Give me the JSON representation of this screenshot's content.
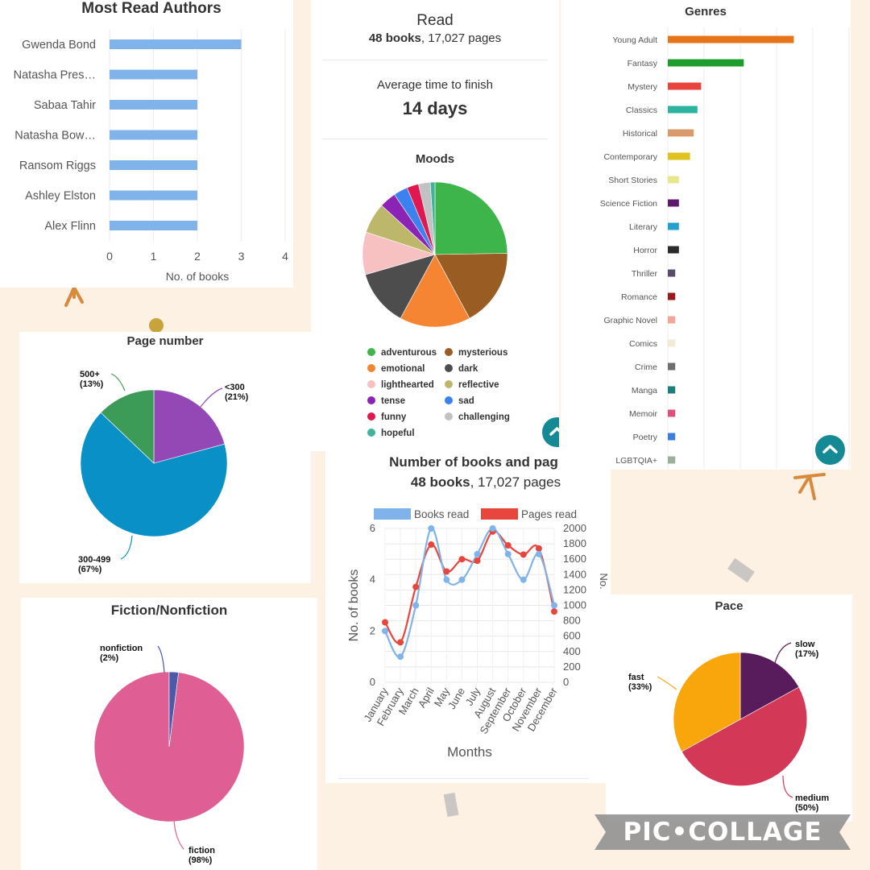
{
  "authors": {
    "title": "Most Read Authors",
    "chart_data": {
      "type": "bar",
      "orientation": "horizontal",
      "title": "Most Read Authors",
      "categories": [
        "Gwenda Bond",
        "Natasha Pres…",
        "Sabaa Tahir",
        "Natasha Bow…",
        "Ransom Riggs",
        "Ashley Elston",
        "Alex Flinn"
      ],
      "values": [
        3,
        2,
        2,
        2,
        2,
        2,
        2
      ],
      "xlabel": "No. of books",
      "xlim": [
        0,
        4
      ],
      "xticks": [
        0,
        1,
        2,
        3,
        4
      ],
      "color": "#7fb3ea"
    }
  },
  "read": {
    "title": "Read",
    "books": "48 books",
    "pages": ", 17,027 pages",
    "avg_label": "Average time to finish",
    "avg_value": "14 days"
  },
  "moods": {
    "title": "Moods",
    "chart_data": {
      "type": "pie",
      "title": "Moods",
      "labels": [
        "adventurous",
        "mysterious",
        "emotional",
        "dark",
        "lighthearted",
        "reflective",
        "tense",
        "sad",
        "funny",
        "challenging",
        "hopeful"
      ],
      "values": [
        23.5,
        16.5,
        15.0,
        12.0,
        9.0,
        6.5,
        3.5,
        3.0,
        2.5,
        2.5,
        1.0
      ],
      "colors": [
        "#3db54a",
        "#995d24",
        "#f58533",
        "#4d4d4d",
        "#f7c1c1",
        "#bdb76b",
        "#8b23b5",
        "#3b82f0",
        "#e0184f",
        "#c2c2c2",
        "#3fb39e"
      ]
    }
  },
  "genres": {
    "title": "Genres",
    "chart_data": {
      "type": "bar",
      "orientation": "horizontal",
      "title": "Genres",
      "categories": [
        "Young Adult",
        "Fantasy",
        "Mystery",
        "Classics",
        "Historical",
        "Contemporary",
        "Short Stories",
        "Science Fiction",
        "Literary",
        "Horror",
        "Thriller",
        "Romance",
        "Graphic Novel",
        "Comics",
        "Crime",
        "Manga",
        "Memoir",
        "Poetry",
        "LGBTQIA+"
      ],
      "values": [
        34,
        20.5,
        9,
        8,
        7,
        6,
        3,
        3,
        3,
        3,
        2,
        2,
        2,
        2,
        2,
        2,
        2,
        2,
        2
      ],
      "colors": [
        "#e8741a",
        "#1e9c2c",
        "#e8433d",
        "#2bb3a0",
        "#d99b6c",
        "#e0c21e",
        "#e6e88c",
        "#5c1a6b",
        "#22a0cf",
        "#2b2b2b",
        "#5a4a6b",
        "#9a1a1a",
        "#f4a59a",
        "#f2ead6",
        "#6e6e6e",
        "#1e7e7e",
        "#e0507a",
        "#3a7fdd",
        "#9ab09a"
      ]
    }
  },
  "pagenum": {
    "title": "Page number",
    "chart_data": {
      "type": "pie",
      "title": "Page number",
      "labels": [
        "<300",
        "300-499",
        "500+"
      ],
      "values": [
        21,
        67,
        13
      ],
      "display": [
        "(21%)",
        "(67%)",
        "(13%)"
      ],
      "colors": [
        "#9448b5",
        "#0890c7",
        "#3d9b58"
      ]
    }
  },
  "monthly": {
    "title": "Number of books and pag",
    "books": "48 books",
    "pages": ", 17,027 pages",
    "chart_data": {
      "type": "line",
      "title": "Number of books and pages",
      "categories": [
        "January",
        "February",
        "March",
        "April",
        "May",
        "June",
        "July",
        "August",
        "September",
        "October",
        "November",
        "December"
      ],
      "series": [
        {
          "name": "Books read",
          "values": [
            2,
            1,
            3,
            6,
            4,
            4,
            5,
            6,
            5,
            4,
            5,
            3
          ],
          "color": "#7fb3ea",
          "axis": "left"
        },
        {
          "name": "Pages read",
          "values": [
            780,
            520,
            1240,
            1790,
            1440,
            1600,
            1580,
            1960,
            1780,
            1660,
            1740,
            920
          ],
          "color": "#e8463d",
          "axis": "right"
        }
      ],
      "xlabel": "Months",
      "ylabel": "No. of books",
      "y2label": "No.",
      "ylim": [
        0,
        6
      ],
      "y2lim": [
        0,
        2000
      ],
      "yticks": [
        0,
        2,
        4,
        6
      ],
      "y2ticks": [
        0,
        200,
        400,
        600,
        800,
        1000,
        1200,
        1400,
        1600,
        1800,
        2000
      ]
    }
  },
  "fiction": {
    "title": "Fiction/Nonfiction",
    "chart_data": {
      "type": "pie",
      "title": "Fiction/Nonfiction",
      "labels": [
        "fiction",
        "nonfiction"
      ],
      "values": [
        98,
        2
      ],
      "display": [
        "(98%)",
        "(2%)"
      ],
      "colors": [
        "#df5f94",
        "#4b5aa8"
      ]
    }
  },
  "pace": {
    "title": "Pace",
    "chart_data": {
      "type": "pie",
      "title": "Pace",
      "labels": [
        "slow",
        "medium",
        "fast"
      ],
      "values": [
        17,
        50,
        33
      ],
      "display": [
        "(17%)",
        "(50%)",
        "(33%)"
      ],
      "colors": [
        "#581b5b",
        "#d33956",
        "#f9a60d"
      ]
    }
  },
  "watermark": "PIC•COLLAGE"
}
